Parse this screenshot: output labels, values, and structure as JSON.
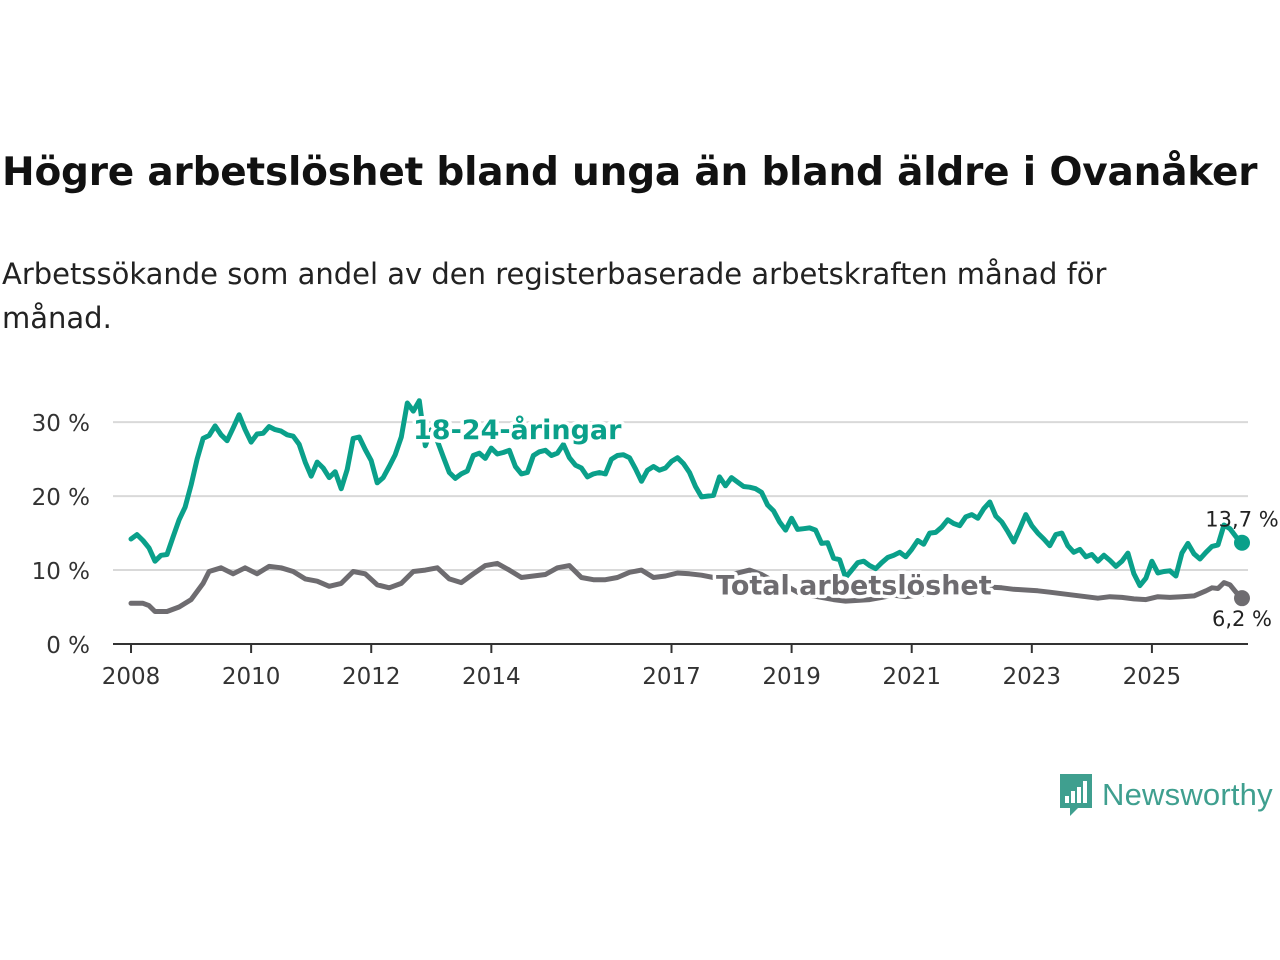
{
  "title": "Högre arbetslöshet bland unga än bland äldre i Ovanåker",
  "subtitle": "Arbetssökande som andel av den registerbaserade arbetskraften månad för månad.",
  "brand": {
    "name": "Newsworthy",
    "icon": "newsworthy-logo-icon"
  },
  "colors": {
    "youth": "#0aa08a",
    "total": "#6e6c70",
    "grid": "#d9d9d9",
    "axis": "#333333"
  },
  "chart_data": {
    "type": "line",
    "title": "Högre arbetslöshet bland unga än bland äldre i Ovanåker",
    "xlabel": "",
    "ylabel": "",
    "ylim": [
      0,
      33
    ],
    "xlim": [
      2007.7,
      2026.6
    ],
    "y_ticks": [
      "0 %",
      "10 %",
      "20 %",
      "30 %"
    ],
    "y_tick_values": [
      0,
      10,
      20,
      30
    ],
    "x_ticks": [
      "2008",
      "2010",
      "2012",
      "2014",
      "2017",
      "2019",
      "2021",
      "2023",
      "2025"
    ],
    "x_tick_values": [
      2008,
      2010,
      2012,
      2014,
      2017,
      2019,
      2021,
      2023,
      2025
    ],
    "series": [
      {
        "name": "18-24-åringar",
        "label": "18-24-åringar",
        "end_label": "13,7 %",
        "points": [
          [
            2008.0,
            14.2
          ],
          [
            2008.1,
            14.8
          ],
          [
            2008.2,
            14.0
          ],
          [
            2008.3,
            13.0
          ],
          [
            2008.4,
            11.2
          ],
          [
            2008.5,
            12.0
          ],
          [
            2008.6,
            12.1
          ],
          [
            2008.7,
            14.5
          ],
          [
            2008.8,
            16.8
          ],
          [
            2008.9,
            18.5
          ],
          [
            2009.0,
            21.5
          ],
          [
            2009.1,
            25.0
          ],
          [
            2009.2,
            27.8
          ],
          [
            2009.3,
            28.2
          ],
          [
            2009.4,
            29.5
          ],
          [
            2009.5,
            28.3
          ],
          [
            2009.6,
            27.5
          ],
          [
            2009.7,
            29.2
          ],
          [
            2009.8,
            31.0
          ],
          [
            2009.9,
            29.0
          ],
          [
            2010.0,
            27.3
          ],
          [
            2010.1,
            28.4
          ],
          [
            2010.2,
            28.5
          ],
          [
            2010.3,
            29.4
          ],
          [
            2010.4,
            29.0
          ],
          [
            2010.5,
            28.8
          ],
          [
            2010.6,
            28.3
          ],
          [
            2010.7,
            28.1
          ],
          [
            2010.8,
            27.0
          ],
          [
            2010.9,
            24.6
          ],
          [
            2011.0,
            22.7
          ],
          [
            2011.1,
            24.6
          ],
          [
            2011.2,
            23.8
          ],
          [
            2011.3,
            22.5
          ],
          [
            2011.4,
            23.3
          ],
          [
            2011.5,
            21.0
          ],
          [
            2011.6,
            23.6
          ],
          [
            2011.7,
            27.8
          ],
          [
            2011.8,
            28.0
          ],
          [
            2011.9,
            26.3
          ],
          [
            2012.0,
            24.8
          ],
          [
            2012.1,
            21.8
          ],
          [
            2012.2,
            22.5
          ],
          [
            2012.3,
            24.0
          ],
          [
            2012.4,
            25.6
          ],
          [
            2012.5,
            28.0
          ],
          [
            2012.6,
            32.6
          ],
          [
            2012.7,
            31.5
          ],
          [
            2012.8,
            32.9
          ],
          [
            2012.9,
            26.8
          ],
          [
            2013.0,
            29.0
          ],
          [
            2013.1,
            27.5
          ],
          [
            2013.2,
            25.3
          ],
          [
            2013.3,
            23.2
          ],
          [
            2013.4,
            22.4
          ],
          [
            2013.5,
            23.0
          ],
          [
            2013.6,
            23.4
          ],
          [
            2013.7,
            25.5
          ],
          [
            2013.8,
            25.8
          ],
          [
            2013.9,
            25.1
          ],
          [
            2014.0,
            26.5
          ],
          [
            2014.1,
            25.7
          ],
          [
            2014.2,
            25.9
          ],
          [
            2014.3,
            26.2
          ],
          [
            2014.4,
            24.0
          ],
          [
            2014.5,
            23.0
          ],
          [
            2014.6,
            23.2
          ],
          [
            2014.7,
            25.5
          ],
          [
            2014.8,
            26.0
          ],
          [
            2014.9,
            26.2
          ],
          [
            2015.0,
            25.5
          ],
          [
            2015.1,
            25.8
          ],
          [
            2015.2,
            27.0
          ],
          [
            2015.3,
            25.2
          ],
          [
            2015.4,
            24.2
          ],
          [
            2015.5,
            23.8
          ],
          [
            2015.6,
            22.6
          ],
          [
            2015.7,
            23.0
          ],
          [
            2015.8,
            23.2
          ],
          [
            2015.9,
            23.0
          ],
          [
            2016.0,
            25.0
          ],
          [
            2016.1,
            25.5
          ],
          [
            2016.2,
            25.6
          ],
          [
            2016.3,
            25.2
          ],
          [
            2016.4,
            23.7
          ],
          [
            2016.5,
            22.0
          ],
          [
            2016.6,
            23.5
          ],
          [
            2016.7,
            24.0
          ],
          [
            2016.8,
            23.5
          ],
          [
            2016.9,
            23.8
          ],
          [
            2017.0,
            24.7
          ],
          [
            2017.1,
            25.2
          ],
          [
            2017.2,
            24.4
          ],
          [
            2017.3,
            23.2
          ],
          [
            2017.4,
            21.3
          ],
          [
            2017.5,
            19.9
          ],
          [
            2017.6,
            20.0
          ],
          [
            2017.7,
            20.1
          ],
          [
            2017.8,
            22.6
          ],
          [
            2017.9,
            21.4
          ],
          [
            2018.0,
            22.5
          ],
          [
            2018.1,
            21.9
          ],
          [
            2018.2,
            21.3
          ],
          [
            2018.3,
            21.2
          ],
          [
            2018.4,
            21.0
          ],
          [
            2018.5,
            20.5
          ],
          [
            2018.6,
            18.8
          ],
          [
            2018.7,
            18.0
          ],
          [
            2018.8,
            16.5
          ],
          [
            2018.9,
            15.4
          ],
          [
            2019.0,
            17.0
          ],
          [
            2019.1,
            15.5
          ],
          [
            2019.2,
            15.6
          ],
          [
            2019.3,
            15.7
          ],
          [
            2019.4,
            15.4
          ],
          [
            2019.5,
            13.6
          ],
          [
            2019.6,
            13.7
          ],
          [
            2019.7,
            11.6
          ],
          [
            2019.8,
            11.4
          ],
          [
            2019.9,
            9.0
          ],
          [
            2020.0,
            10.0
          ],
          [
            2020.1,
            11.0
          ],
          [
            2020.2,
            11.2
          ],
          [
            2020.3,
            10.6
          ],
          [
            2020.4,
            10.2
          ],
          [
            2020.5,
            11.0
          ],
          [
            2020.6,
            11.7
          ],
          [
            2020.7,
            12.0
          ],
          [
            2020.8,
            12.4
          ],
          [
            2020.9,
            11.8
          ],
          [
            2021.0,
            12.8
          ],
          [
            2021.1,
            14.0
          ],
          [
            2021.2,
            13.5
          ],
          [
            2021.3,
            15.0
          ],
          [
            2021.4,
            15.1
          ],
          [
            2021.5,
            15.8
          ],
          [
            2021.6,
            16.8
          ],
          [
            2021.7,
            16.3
          ],
          [
            2021.8,
            16.0
          ],
          [
            2021.9,
            17.2
          ],
          [
            2022.0,
            17.5
          ],
          [
            2022.1,
            17.0
          ],
          [
            2022.2,
            18.3
          ],
          [
            2022.3,
            19.2
          ],
          [
            2022.4,
            17.3
          ],
          [
            2022.5,
            16.5
          ],
          [
            2022.6,
            15.2
          ],
          [
            2022.7,
            13.8
          ],
          [
            2022.8,
            15.6
          ],
          [
            2022.9,
            17.5
          ],
          [
            2023.0,
            16.0
          ],
          [
            2023.1,
            15.0
          ],
          [
            2023.2,
            14.2
          ],
          [
            2023.3,
            13.3
          ],
          [
            2023.4,
            14.8
          ],
          [
            2023.5,
            15.0
          ],
          [
            2023.6,
            13.3
          ],
          [
            2023.7,
            12.4
          ],
          [
            2023.8,
            12.8
          ],
          [
            2023.9,
            11.8
          ],
          [
            2024.0,
            12.1
          ],
          [
            2024.1,
            11.2
          ],
          [
            2024.2,
            12.0
          ],
          [
            2024.3,
            11.3
          ],
          [
            2024.4,
            10.5
          ],
          [
            2024.5,
            11.2
          ],
          [
            2024.6,
            12.3
          ],
          [
            2024.7,
            9.5
          ],
          [
            2024.8,
            7.9
          ],
          [
            2024.9,
            8.9
          ],
          [
            2025.0,
            11.2
          ],
          [
            2025.1,
            9.6
          ],
          [
            2025.2,
            9.8
          ],
          [
            2025.3,
            9.9
          ],
          [
            2025.4,
            9.2
          ],
          [
            2025.5,
            12.3
          ],
          [
            2025.6,
            13.6
          ],
          [
            2025.7,
            12.2
          ],
          [
            2025.8,
            11.5
          ],
          [
            2025.9,
            12.4
          ],
          [
            2026.0,
            13.2
          ],
          [
            2026.1,
            13.4
          ],
          [
            2026.2,
            16.1
          ],
          [
            2026.3,
            15.6
          ],
          [
            2026.4,
            14.5
          ],
          [
            2026.5,
            13.7
          ]
        ]
      },
      {
        "name": "Total arbetslöshet",
        "label": "Total arbetslöshet",
        "end_label": "6,2 %",
        "points": [
          [
            2008.0,
            5.5
          ],
          [
            2008.2,
            5.5
          ],
          [
            2008.3,
            5.2
          ],
          [
            2008.4,
            4.4
          ],
          [
            2008.6,
            4.4
          ],
          [
            2008.8,
            5.0
          ],
          [
            2009.0,
            6.0
          ],
          [
            2009.2,
            8.2
          ],
          [
            2009.3,
            9.8
          ],
          [
            2009.5,
            10.3
          ],
          [
            2009.7,
            9.5
          ],
          [
            2009.9,
            10.3
          ],
          [
            2010.1,
            9.5
          ],
          [
            2010.3,
            10.5
          ],
          [
            2010.5,
            10.3
          ],
          [
            2010.7,
            9.8
          ],
          [
            2010.9,
            8.8
          ],
          [
            2011.1,
            8.5
          ],
          [
            2011.3,
            7.8
          ],
          [
            2011.5,
            8.2
          ],
          [
            2011.7,
            9.8
          ],
          [
            2011.9,
            9.5
          ],
          [
            2012.1,
            8.0
          ],
          [
            2012.3,
            7.6
          ],
          [
            2012.5,
            8.2
          ],
          [
            2012.7,
            9.8
          ],
          [
            2012.9,
            10.0
          ],
          [
            2013.1,
            10.3
          ],
          [
            2013.3,
            8.8
          ],
          [
            2013.5,
            8.3
          ],
          [
            2013.7,
            9.5
          ],
          [
            2013.9,
            10.6
          ],
          [
            2014.1,
            10.9
          ],
          [
            2014.3,
            10.0
          ],
          [
            2014.5,
            9.0
          ],
          [
            2014.7,
            9.2
          ],
          [
            2014.9,
            9.4
          ],
          [
            2015.1,
            10.3
          ],
          [
            2015.3,
            10.6
          ],
          [
            2015.5,
            9.0
          ],
          [
            2015.7,
            8.7
          ],
          [
            2015.9,
            8.7
          ],
          [
            2016.1,
            9.0
          ],
          [
            2016.3,
            9.7
          ],
          [
            2016.5,
            10.0
          ],
          [
            2016.7,
            9.0
          ],
          [
            2016.9,
            9.2
          ],
          [
            2017.1,
            9.6
          ],
          [
            2017.3,
            9.5
          ],
          [
            2017.5,
            9.3
          ],
          [
            2017.7,
            9.0
          ],
          [
            2017.9,
            9.2
          ],
          [
            2018.1,
            9.6
          ],
          [
            2018.3,
            10.0
          ],
          [
            2018.5,
            9.4
          ],
          [
            2018.7,
            8.5
          ],
          [
            2018.9,
            7.9
          ],
          [
            2019.1,
            7.0
          ],
          [
            2019.3,
            6.6
          ],
          [
            2019.5,
            6.3
          ],
          [
            2019.7,
            6.0
          ],
          [
            2019.9,
            5.8
          ],
          [
            2020.1,
            5.9
          ],
          [
            2020.3,
            6.0
          ],
          [
            2020.5,
            6.3
          ],
          [
            2020.7,
            6.6
          ],
          [
            2020.9,
            6.4
          ],
          [
            2021.1,
            6.6
          ],
          [
            2021.3,
            6.9
          ],
          [
            2021.5,
            7.0
          ],
          [
            2021.7,
            7.2
          ],
          [
            2021.9,
            7.4
          ],
          [
            2022.1,
            7.6
          ],
          [
            2022.3,
            7.7
          ],
          [
            2022.5,
            7.6
          ],
          [
            2022.7,
            7.4
          ],
          [
            2022.9,
            7.3
          ],
          [
            2023.1,
            7.2
          ],
          [
            2023.3,
            7.0
          ],
          [
            2023.5,
            6.8
          ],
          [
            2023.7,
            6.6
          ],
          [
            2023.9,
            6.4
          ],
          [
            2024.1,
            6.2
          ],
          [
            2024.3,
            6.4
          ],
          [
            2024.5,
            6.3
          ],
          [
            2024.7,
            6.1
          ],
          [
            2024.9,
            6.0
          ],
          [
            2025.1,
            6.4
          ],
          [
            2025.3,
            6.3
          ],
          [
            2025.5,
            6.4
          ],
          [
            2025.7,
            6.5
          ],
          [
            2025.9,
            7.2
          ],
          [
            2026.0,
            7.6
          ],
          [
            2026.1,
            7.5
          ],
          [
            2026.2,
            8.3
          ],
          [
            2026.3,
            8.0
          ],
          [
            2026.4,
            7.0
          ],
          [
            2026.5,
            6.2
          ]
        ]
      }
    ]
  }
}
